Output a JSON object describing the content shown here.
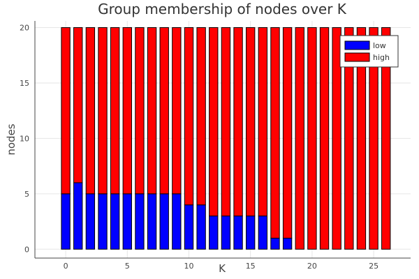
{
  "chart_data": {
    "type": "bar",
    "stacked": true,
    "title": "Group membership of nodes over K",
    "xlabel": "K",
    "ylabel": "nodes",
    "x": [
      0,
      1,
      2,
      3,
      4,
      5,
      6,
      7,
      8,
      9,
      10,
      11,
      12,
      13,
      14,
      15,
      16,
      17,
      18,
      19,
      20,
      21,
      22,
      23,
      24,
      25,
      26
    ],
    "series": [
      {
        "name": "low",
        "color": "#0000ff",
        "values": [
          5,
          6,
          5,
          5,
          5,
          5,
          5,
          5,
          5,
          5,
          4,
          4,
          3,
          3,
          3,
          3,
          3,
          1,
          1,
          0,
          0,
          0,
          0,
          0,
          0,
          0,
          0
        ]
      },
      {
        "name": "high",
        "color": "#ff0000",
        "values": [
          15,
          14,
          15,
          15,
          15,
          15,
          15,
          15,
          15,
          15,
          16,
          16,
          17,
          17,
          17,
          17,
          17,
          19,
          19,
          20,
          20,
          20,
          20,
          20,
          20,
          20,
          20
        ]
      }
    ],
    "xlim": [
      -2.5,
      28
    ],
    "ylim": [
      -0.8,
      20.6
    ],
    "xticks": [
      0,
      5,
      10,
      15,
      20,
      25
    ],
    "yticks": [
      0,
      5,
      10,
      15,
      20
    ],
    "xtick_labels": [
      "0",
      "5",
      "10",
      "15",
      "20",
      "25"
    ],
    "ytick_labels": [
      "0",
      "5",
      "10",
      "15",
      "20"
    ],
    "grid": true,
    "legend_position": "top-right"
  }
}
